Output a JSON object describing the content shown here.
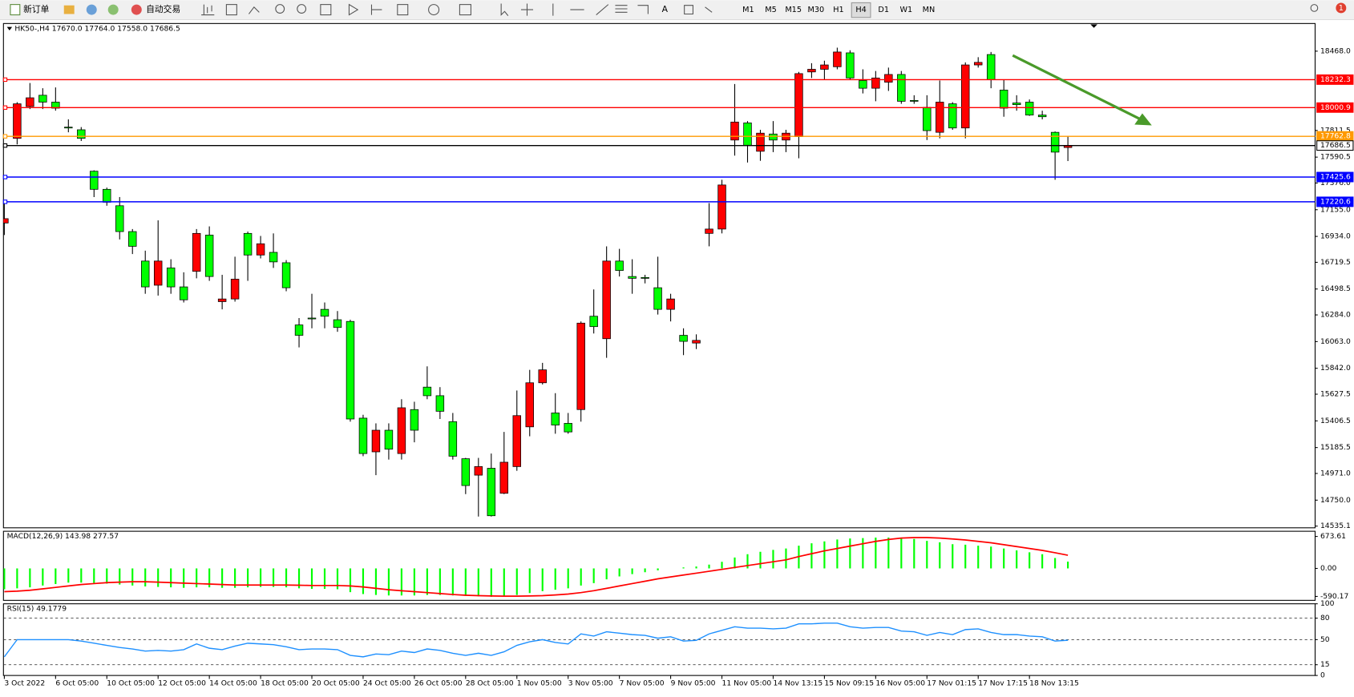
{
  "toolbar": {
    "new_order": "新订单",
    "auto_trading": "自动交易",
    "timeframes": [
      "M1",
      "M5",
      "M15",
      "M30",
      "H1",
      "H4",
      "D1",
      "W1",
      "MN"
    ],
    "active_timeframe": "H4",
    "notifications": 1
  },
  "chart_data": [
    {
      "type": "candlestick",
      "title": "HK50-,H4  17670.0 17764.0 17558.0 17686.5",
      "categories": [
        "3 Oct 2022",
        null,
        null,
        null,
        "6 Oct 05:00",
        null,
        null,
        null,
        "10 Oct 05:00",
        null,
        null,
        null,
        "12 Oct 05:00",
        null,
        null,
        null,
        "14 Oct 05:00",
        null,
        null,
        null,
        "18 Oct 05:00",
        null,
        null,
        null,
        "20 Oct 05:00",
        null,
        null,
        null,
        "24 Oct 05:00",
        null,
        null,
        null,
        "26 Oct 05:00",
        null,
        null,
        null,
        "28 Oct 05:00",
        null,
        null,
        null,
        "1 Nov 05:00",
        null,
        null,
        null,
        "3 Nov 05:00",
        null,
        null,
        null,
        "7 Nov 05:00",
        null,
        null,
        null,
        "9 Nov 05:00",
        null,
        null,
        null,
        "11 Nov 05:00",
        null,
        null,
        null,
        "14 Nov 13:15",
        null,
        null,
        null,
        "15 Nov 09:15",
        null,
        null,
        null,
        "16 Nov 05:00",
        null,
        null,
        null,
        "17 Nov 01:15",
        null,
        null,
        null,
        "17 Nov 17:15",
        null,
        null,
        null,
        "18 Nov 13:15",
        null,
        null,
        null
      ],
      "open": [
        17045,
        17746,
        18010,
        18103,
        18046,
        17839,
        17817,
        17474,
        17324,
        17188,
        16974,
        16730,
        16530,
        16673,
        16516,
        16645,
        16945,
        16394,
        16416,
        16959,
        16780,
        16802,
        16716,
        16201,
        16258,
        16330,
        16244,
        16230,
        15429,
        15150,
        15329,
        15136,
        15500,
        15686,
        15615,
        15400,
        15093,
        14957,
        15014,
        14807,
        15028,
        15357,
        15722,
        15472,
        15386,
        15500,
        16273,
        16087,
        16730,
        16602,
        16594,
        16509,
        16330,
        16115,
        16051,
        16959,
        16995,
        17732,
        17874,
        17639,
        17782,
        17732,
        17760,
        18296,
        18318,
        18339,
        18454,
        18225,
        18161,
        18211,
        18275,
        18060,
        18003,
        17796,
        18032,
        17832,
        18354,
        18440,
        18146,
        18039,
        18046,
        17939,
        17796,
        17670
      ],
      "high": [
        17210,
        18046,
        18204,
        18161,
        18168,
        17903,
        17839,
        17481,
        17338,
        17260,
        16995,
        16816,
        17067,
        16745,
        16637,
        16995,
        17017,
        16616,
        16766,
        16974,
        16938,
        16959,
        16738,
        16258,
        16459,
        16387,
        16316,
        16244,
        15457,
        15386,
        15386,
        15586,
        15565,
        15858,
        15686,
        15472,
        15100,
        15100,
        15136,
        15315,
        15658,
        15829,
        15887,
        15636,
        15472,
        16230,
        16495,
        16852,
        16831,
        16745,
        16616,
        16766,
        16459,
        16173,
        16123,
        17210,
        17403,
        18196,
        17889,
        17817,
        17889,
        17817,
        18296,
        18368,
        18389,
        18497,
        18475,
        18318,
        18304,
        18332,
        18304,
        18103,
        18103,
        18225,
        18046,
        18375,
        18418,
        18461,
        18232,
        18103,
        18068,
        17975,
        17803,
        17764
      ],
      "low": [
        16945,
        17696,
        17989,
        17989,
        17975,
        17796,
        17724,
        17260,
        17188,
        16909,
        16788,
        16459,
        16444,
        16459,
        16387,
        16587,
        16566,
        16330,
        16394,
        16566,
        16752,
        16673,
        16480,
        16015,
        16173,
        16173,
        16144,
        15400,
        15114,
        14957,
        15086,
        15086,
        15229,
        15586,
        15422,
        15086,
        14800,
        14614,
        14614,
        14800,
        14993,
        15279,
        15708,
        15300,
        15300,
        15400,
        16130,
        15929,
        16602,
        16459,
        16545,
        16287,
        16230,
        15951,
        16001,
        16852,
        16959,
        17603,
        17546,
        17560,
        17632,
        17632,
        17581,
        18246,
        18232,
        18318,
        18232,
        18118,
        18053,
        18139,
        18032,
        18032,
        17732,
        17746,
        17817,
        17746,
        18332,
        18161,
        17925,
        17975,
        17932,
        17903,
        17403,
        17558
      ],
      "close": [
        17081,
        18032,
        18082,
        18046,
        17996,
        17832,
        17746,
        17324,
        17217,
        16974,
        16852,
        16516,
        16730,
        16516,
        16409,
        16959,
        16602,
        16416,
        16580,
        16780,
        16873,
        16723,
        16509,
        16115,
        16251,
        16273,
        16180,
        15422,
        15136,
        15329,
        15172,
        15515,
        15329,
        15615,
        15486,
        15114,
        14871,
        15028,
        14621,
        15064,
        15450,
        15722,
        15829,
        15372,
        15315,
        16216,
        16187,
        16730,
        16652,
        16587,
        16587,
        16330,
        16416,
        16065,
        16073,
        16995,
        17360,
        17881,
        17689,
        17789,
        17732,
        17789,
        18282,
        18318,
        18354,
        18461,
        18246,
        18161,
        18246,
        18275,
        18053,
        18053,
        17810,
        18046,
        17832,
        18354,
        18375,
        18232,
        17996,
        18025,
        17939,
        17925,
        17632,
        17686.5
      ],
      "up_color": "#ff0000",
      "down_color": "#00ff00",
      "hlines": [
        {
          "value": 18232.3,
          "color": "#ff0000"
        },
        {
          "value": 18000.9,
          "color": "#ff0000"
        },
        {
          "value": 17762.8,
          "color": "#ff9900"
        },
        {
          "value": 17686.5,
          "color": "#000000"
        },
        {
          "value": 17425.6,
          "color": "#0000ff"
        },
        {
          "value": 17220.6,
          "color": "#0000ff"
        }
      ],
      "ylim": [
        14521,
        18697
      ],
      "yticks": [
        {
          "value": 18468,
          "label": "18468.0"
        },
        17811.5,
        17590.5,
        {
          "value": 17376,
          "label": "17376.0"
        },
        {
          "value": 17155,
          "label": "17155.0"
        },
        {
          "value": 16934,
          "label": "16934.0"
        },
        16719.5,
        16498.5,
        {
          "value": 16284,
          "label": "16284.0"
        },
        {
          "value": 16063,
          "label": "16063.0"
        },
        {
          "value": 15842,
          "label": "15842.0"
        },
        15627.5,
        15406.5,
        15185.5,
        {
          "value": 14971,
          "label": "14971.0"
        },
        {
          "value": 14750,
          "label": "14750.0"
        },
        14535.1
      ]
    },
    {
      "type": "macd",
      "title": "MACD(12,26,9) 143.98 277.57",
      "values": [
        -440,
        -420,
        -400,
        -360,
        -330,
        -300,
        -300,
        -310,
        -320,
        -340,
        -360,
        -380,
        -390,
        -400,
        -410,
        -400,
        -400,
        -410,
        -410,
        -400,
        -390,
        -390,
        -400,
        -420,
        -430,
        -430,
        -440,
        -500,
        -540,
        -560,
        -570,
        -570,
        -570,
        -560,
        -560,
        -570,
        -580,
        -590,
        -600,
        -590,
        -560,
        -520,
        -480,
        -450,
        -420,
        -360,
        -310,
        -230,
        -170,
        -120,
        -80,
        -40,
        0,
        20,
        40,
        80,
        140,
        230,
        300,
        350,
        390,
        420,
        480,
        530,
        570,
        610,
        630,
        640,
        650,
        650,
        640,
        620,
        580,
        550,
        510,
        500,
        480,
        460,
        420,
        380,
        340,
        300,
        220,
        143.98
      ],
      "signal": [
        -490,
        -480,
        -460,
        -430,
        -400,
        -370,
        -340,
        -320,
        -300,
        -290,
        -280,
        -280,
        -290,
        -300,
        -310,
        -320,
        -330,
        -340,
        -350,
        -350,
        -350,
        -350,
        -350,
        -355,
        -360,
        -360,
        -360,
        -370,
        -390,
        -420,
        -450,
        -470,
        -490,
        -510,
        -530,
        -550,
        -565,
        -575,
        -580,
        -585,
        -585,
        -580,
        -575,
        -560,
        -540,
        -510,
        -470,
        -420,
        -370,
        -320,
        -270,
        -220,
        -180,
        -140,
        -100,
        -60,
        -20,
        20,
        60,
        100,
        140,
        180,
        250,
        310,
        370,
        420,
        470,
        520,
        570,
        610,
        640,
        650,
        650,
        640,
        620,
        600,
        570,
        540,
        500,
        460,
        420,
        380,
        330,
        277.57
      ],
      "color": "#00ff00",
      "signal_color": "#ff0000",
      "ylim": [
        -673,
        783
      ],
      "yticks": [
        673.61,
        {
          "value": 0,
          "label": "0.00"
        },
        -590.17
      ]
    },
    {
      "type": "line",
      "title": "RSI(15) 49.1779",
      "values": [
        26,
        50,
        50,
        50,
        50,
        50,
        48,
        45,
        42,
        39,
        37,
        34,
        35,
        34,
        36,
        44,
        38,
        36,
        41,
        45,
        44,
        43,
        40,
        36,
        37,
        37,
        36,
        28,
        26,
        30,
        29,
        34,
        32,
        37,
        35,
        31,
        28,
        31,
        28,
        33,
        42,
        47,
        50,
        46,
        44,
        58,
        55,
        61,
        59,
        57,
        56,
        52,
        54,
        48,
        49,
        58,
        63,
        68,
        66,
        66,
        65,
        66,
        72,
        72,
        73,
        73,
        68,
        66,
        67,
        67,
        62,
        61,
        56,
        60,
        57,
        64,
        65,
        60,
        57,
        57,
        55,
        54,
        48,
        49.1779
      ],
      "color": "#1e90ff",
      "ylim": [
        0,
        100
      ],
      "yticks": [
        0,
        15,
        50,
        80,
        100
      ]
    }
  ]
}
